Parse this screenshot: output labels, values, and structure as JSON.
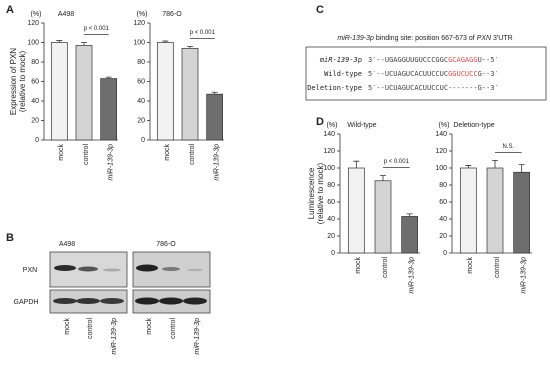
{
  "panels": {
    "a": "A",
    "b": "B",
    "c": "C",
    "d": "D"
  },
  "chart_data": [
    {
      "type": "bar",
      "title": "A498",
      "unit": "(%)",
      "y_label": [
        "Expression of PXN",
        "(relative to mock)"
      ],
      "categories": [
        "mock",
        "control",
        "miR-139-3p"
      ],
      "values": [
        100,
        97,
        63
      ],
      "errors": [
        2,
        3,
        1.5
      ],
      "colors": [
        "#f2f2f2",
        "#d4d4d4",
        "#6e6e6e"
      ],
      "ylim": [
        0,
        120
      ],
      "yticks": [
        0,
        20,
        40,
        60,
        80,
        100,
        120
      ],
      "annotation": "p < 0.001"
    },
    {
      "type": "bar",
      "title": "786-O",
      "unit": "(%)",
      "categories": [
        "mock",
        "control",
        "miR-139-3p"
      ],
      "values": [
        100,
        94,
        47
      ],
      "errors": [
        1.5,
        2,
        2
      ],
      "colors": [
        "#f2f2f2",
        "#d4d4d4",
        "#6e6e6e"
      ],
      "ylim": [
        0,
        120
      ],
      "yticks": [
        0,
        20,
        40,
        60,
        80,
        100,
        120
      ],
      "annotation": "p < 0.001"
    },
    {
      "type": "bar",
      "title": "Wild-type",
      "unit": "(%)",
      "y_label": [
        "Luminescence",
        "(relative to mock)"
      ],
      "categories": [
        "mock",
        "control",
        "miR-139-3p"
      ],
      "values": [
        100,
        85,
        43
      ],
      "errors": [
        8,
        6,
        3
      ],
      "colors": [
        "#f2f2f2",
        "#d4d4d4",
        "#6e6e6e"
      ],
      "ylim": [
        0,
        140
      ],
      "yticks": [
        0,
        20,
        40,
        60,
        80,
        100,
        120,
        140
      ],
      "annotation": "p < 0.001"
    },
    {
      "type": "bar",
      "title": "Deletion-type",
      "unit": "(%)",
      "categories": [
        "mock",
        "control",
        "miR-139-3p"
      ],
      "values": [
        100,
        100,
        95
      ],
      "errors": [
        3,
        9,
        9
      ],
      "colors": [
        "#f2f2f2",
        "#d4d4d4",
        "#6e6e6e"
      ],
      "ylim": [
        0,
        140
      ],
      "yticks": [
        0,
        20,
        40,
        60,
        80,
        100,
        120,
        140
      ],
      "annotation": "N.S."
    }
  ],
  "blot": {
    "cell_lines": [
      "A498",
      "786-O"
    ],
    "rows": [
      "PXN",
      "GAPDH"
    ],
    "lanes": [
      "mock",
      "control",
      "miR-139-3p"
    ]
  },
  "sequence": {
    "title": [
      "miR-139-3p",
      " binding site: position 667-673 of ",
      "PXN",
      " 3′UTR"
    ],
    "rows": [
      {
        "name": "miR-139-3p",
        "parts": [
          "3′--UGAGGUUGUCCCGGC",
          "GCAGAGG",
          "U--5′"
        ]
      },
      {
        "name": "Wild-type",
        "parts": [
          "5′--UCUAGUCACUUCCUC",
          "GGUCUCC",
          "G--3′"
        ]
      },
      {
        "name": "Deletion-type",
        "parts": [
          "5′--UCUAGUCACUUCCUC-------G--3′"
        ]
      }
    ]
  }
}
